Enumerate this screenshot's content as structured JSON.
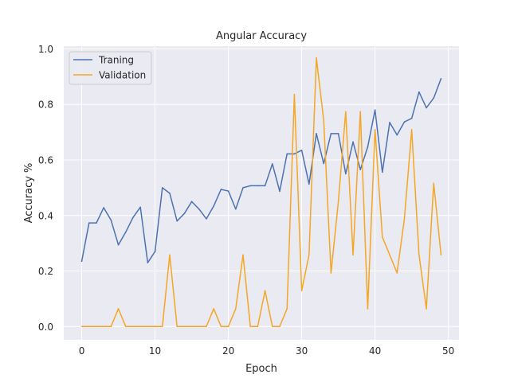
{
  "chart_data": {
    "type": "line",
    "title": "Angular Accuracy",
    "xlabel": "Epoch",
    "ylabel": "Accuracy %",
    "xlim": [
      -2.45,
      51.45
    ],
    "ylim": [
      -0.048,
      1.01
    ],
    "xticks": [
      0,
      10,
      20,
      30,
      40,
      50
    ],
    "yticks": [
      0.0,
      0.2,
      0.4,
      0.6,
      0.8,
      1.0
    ],
    "xtick_labels": [
      "0",
      "10",
      "20",
      "30",
      "40",
      "50"
    ],
    "ytick_labels": [
      "0.0",
      "0.2",
      "0.4",
      "0.6",
      "0.8",
      "1.0"
    ],
    "grid": true,
    "legend": "top-left",
    "background": "#eaeaf2",
    "series": [
      {
        "name": "Traning",
        "color": "#4c72b0",
        "x": [
          0,
          1,
          2,
          3,
          4,
          5,
          6,
          7,
          8,
          9,
          10,
          11,
          12,
          13,
          14,
          15,
          16,
          17,
          18,
          19,
          20,
          21,
          22,
          23,
          24,
          25,
          26,
          27,
          28,
          29,
          30,
          31,
          32,
          33,
          34,
          35,
          36,
          37,
          38,
          39,
          40,
          41,
          42,
          43,
          44,
          45,
          46,
          47,
          48,
          49
        ],
        "y": [
          0.235,
          0.373,
          0.373,
          0.428,
          0.383,
          0.294,
          0.34,
          0.393,
          0.43,
          0.23,
          0.27,
          0.5,
          0.48,
          0.38,
          0.407,
          0.45,
          0.423,
          0.388,
          0.434,
          0.494,
          0.488,
          0.423,
          0.5,
          0.507,
          0.507,
          0.507,
          0.586,
          0.487,
          0.622,
          0.622,
          0.635,
          0.513,
          0.695,
          0.587,
          0.695,
          0.695,
          0.55,
          0.665,
          0.565,
          0.647,
          0.78,
          0.556,
          0.735,
          0.69,
          0.737,
          0.75,
          0.845,
          0.788,
          0.823,
          0.893
        ]
      },
      {
        "name": "Validation",
        "color": "#f5a623",
        "x": [
          0,
          1,
          2,
          3,
          4,
          5,
          6,
          7,
          8,
          9,
          10,
          11,
          12,
          13,
          14,
          15,
          16,
          17,
          18,
          19,
          20,
          21,
          22,
          23,
          24,
          25,
          26,
          27,
          28,
          29,
          30,
          31,
          32,
          33,
          34,
          35,
          36,
          37,
          38,
          39,
          40,
          41,
          42,
          43,
          44,
          45,
          46,
          47,
          48,
          49
        ],
        "y": [
          0.0,
          0.0,
          0.0,
          0.0,
          0.0,
          0.064,
          0.0,
          0.0,
          0.0,
          0.0,
          0.0,
          0.0,
          0.258,
          0.0,
          0.0,
          0.0,
          0.0,
          0.0,
          0.064,
          0.0,
          0.0,
          0.064,
          0.258,
          0.0,
          0.0,
          0.129,
          0.0,
          0.0,
          0.064,
          0.836,
          0.129,
          0.258,
          0.968,
          0.742,
          0.193,
          0.451,
          0.774,
          0.258,
          0.774,
          0.064,
          0.709,
          0.322,
          0.258,
          0.193,
          0.387,
          0.709,
          0.258,
          0.064,
          0.516,
          0.258
        ]
      }
    ]
  }
}
